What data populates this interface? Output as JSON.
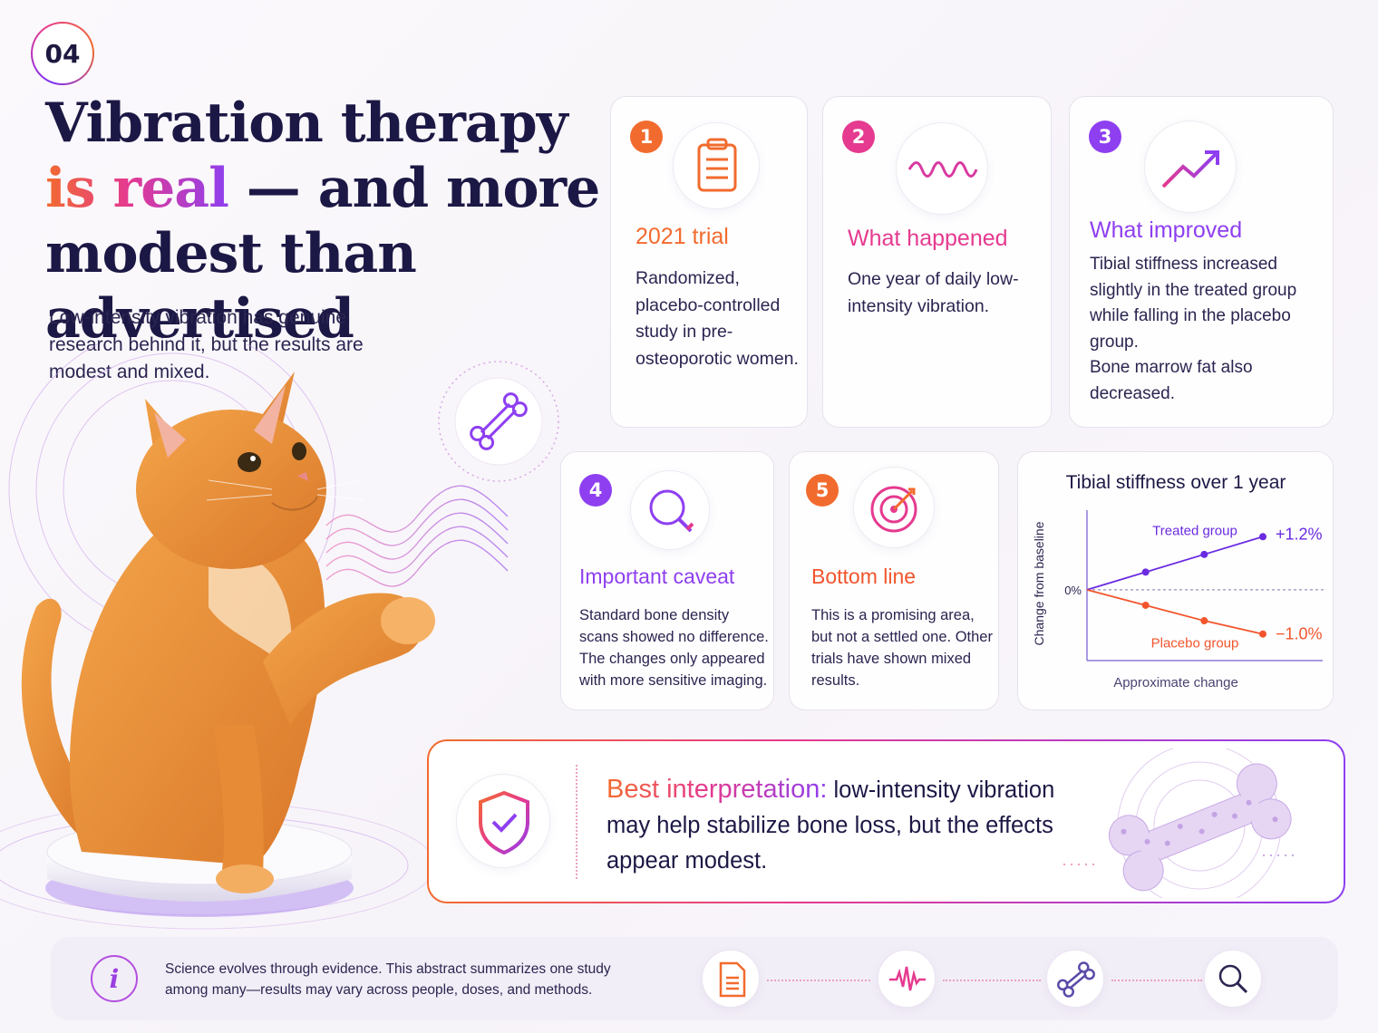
{
  "section_number": "04",
  "headline": {
    "line1": "Vibration therapy",
    "highlight": "is real",
    "line2_rest": " — and more",
    "line3": "modest than advertised"
  },
  "intro": "Low-intensity vibration has genuine research behind it, but the results are modest and mixed.",
  "cards": [
    {
      "number": "1",
      "title": "2021 trial",
      "body": "Randomized, placebo-controlled study in pre-osteoporotic women.",
      "icon": "clipboard-icon",
      "accent": "#f26b2e"
    },
    {
      "number": "2",
      "title": "What happened",
      "body": "One year of daily low-intensity vibration.",
      "icon": "wave-icon",
      "accent": "#e53a8f"
    },
    {
      "number": "3",
      "title": "What improved",
      "body": "Tibial stiffness increased slightly in the treated group while falling in the placebo group.",
      "body2": "Bone marrow fat also decreased.",
      "icon": "trend-up-icon",
      "accent": "#8e3ff0"
    },
    {
      "number": "4",
      "title": "Important caveat",
      "body": "Standard bone density scans showed no difference. The changes only appeared with more sensitive imaging.",
      "icon": "magnifier-icon",
      "accent": "#8e3ff0"
    },
    {
      "number": "5",
      "title": "Bottom line",
      "body": "This is a promising area, but not a settled one. Other trials have shown mixed results.",
      "icon": "target-icon",
      "accent": "#f26b2e"
    }
  ],
  "chart_data": {
    "type": "line",
    "title": "Tibial stiffness over 1 year",
    "xlabel": "Approximate change",
    "ylabel": "Change from baseline",
    "baseline_label": "0%",
    "series": [
      {
        "name": "Treated group",
        "values": [
          0,
          0.4,
          0.8,
          1.2
        ],
        "end_label": "+1.2%",
        "color": "#6a2be0"
      },
      {
        "name": "Placebo group",
        "values": [
          0,
          -0.35,
          -0.7,
          -1.0
        ],
        "end_label": "−1.0%",
        "color": "#f2552c"
      }
    ],
    "ylim": [
      -1.6,
      1.8
    ]
  },
  "banner": {
    "lead": "Best interpretation:",
    "text": " low-intensity vibration may help stabilize bone loss, but the effects appear modest.",
    "icon": "shield-check-icon"
  },
  "footer": {
    "note": "Science evolves through evidence. This abstract summarizes one study among many—results may vary across people, doses, and methods.",
    "icons": [
      "document-icon",
      "waveform-icon",
      "bone-icon",
      "magnifier-icon"
    ]
  },
  "colors": {
    "orange": "#f26b2e",
    "pink": "#e53a8f",
    "purple": "#8e3ff0",
    "navy": "#1c1845"
  }
}
